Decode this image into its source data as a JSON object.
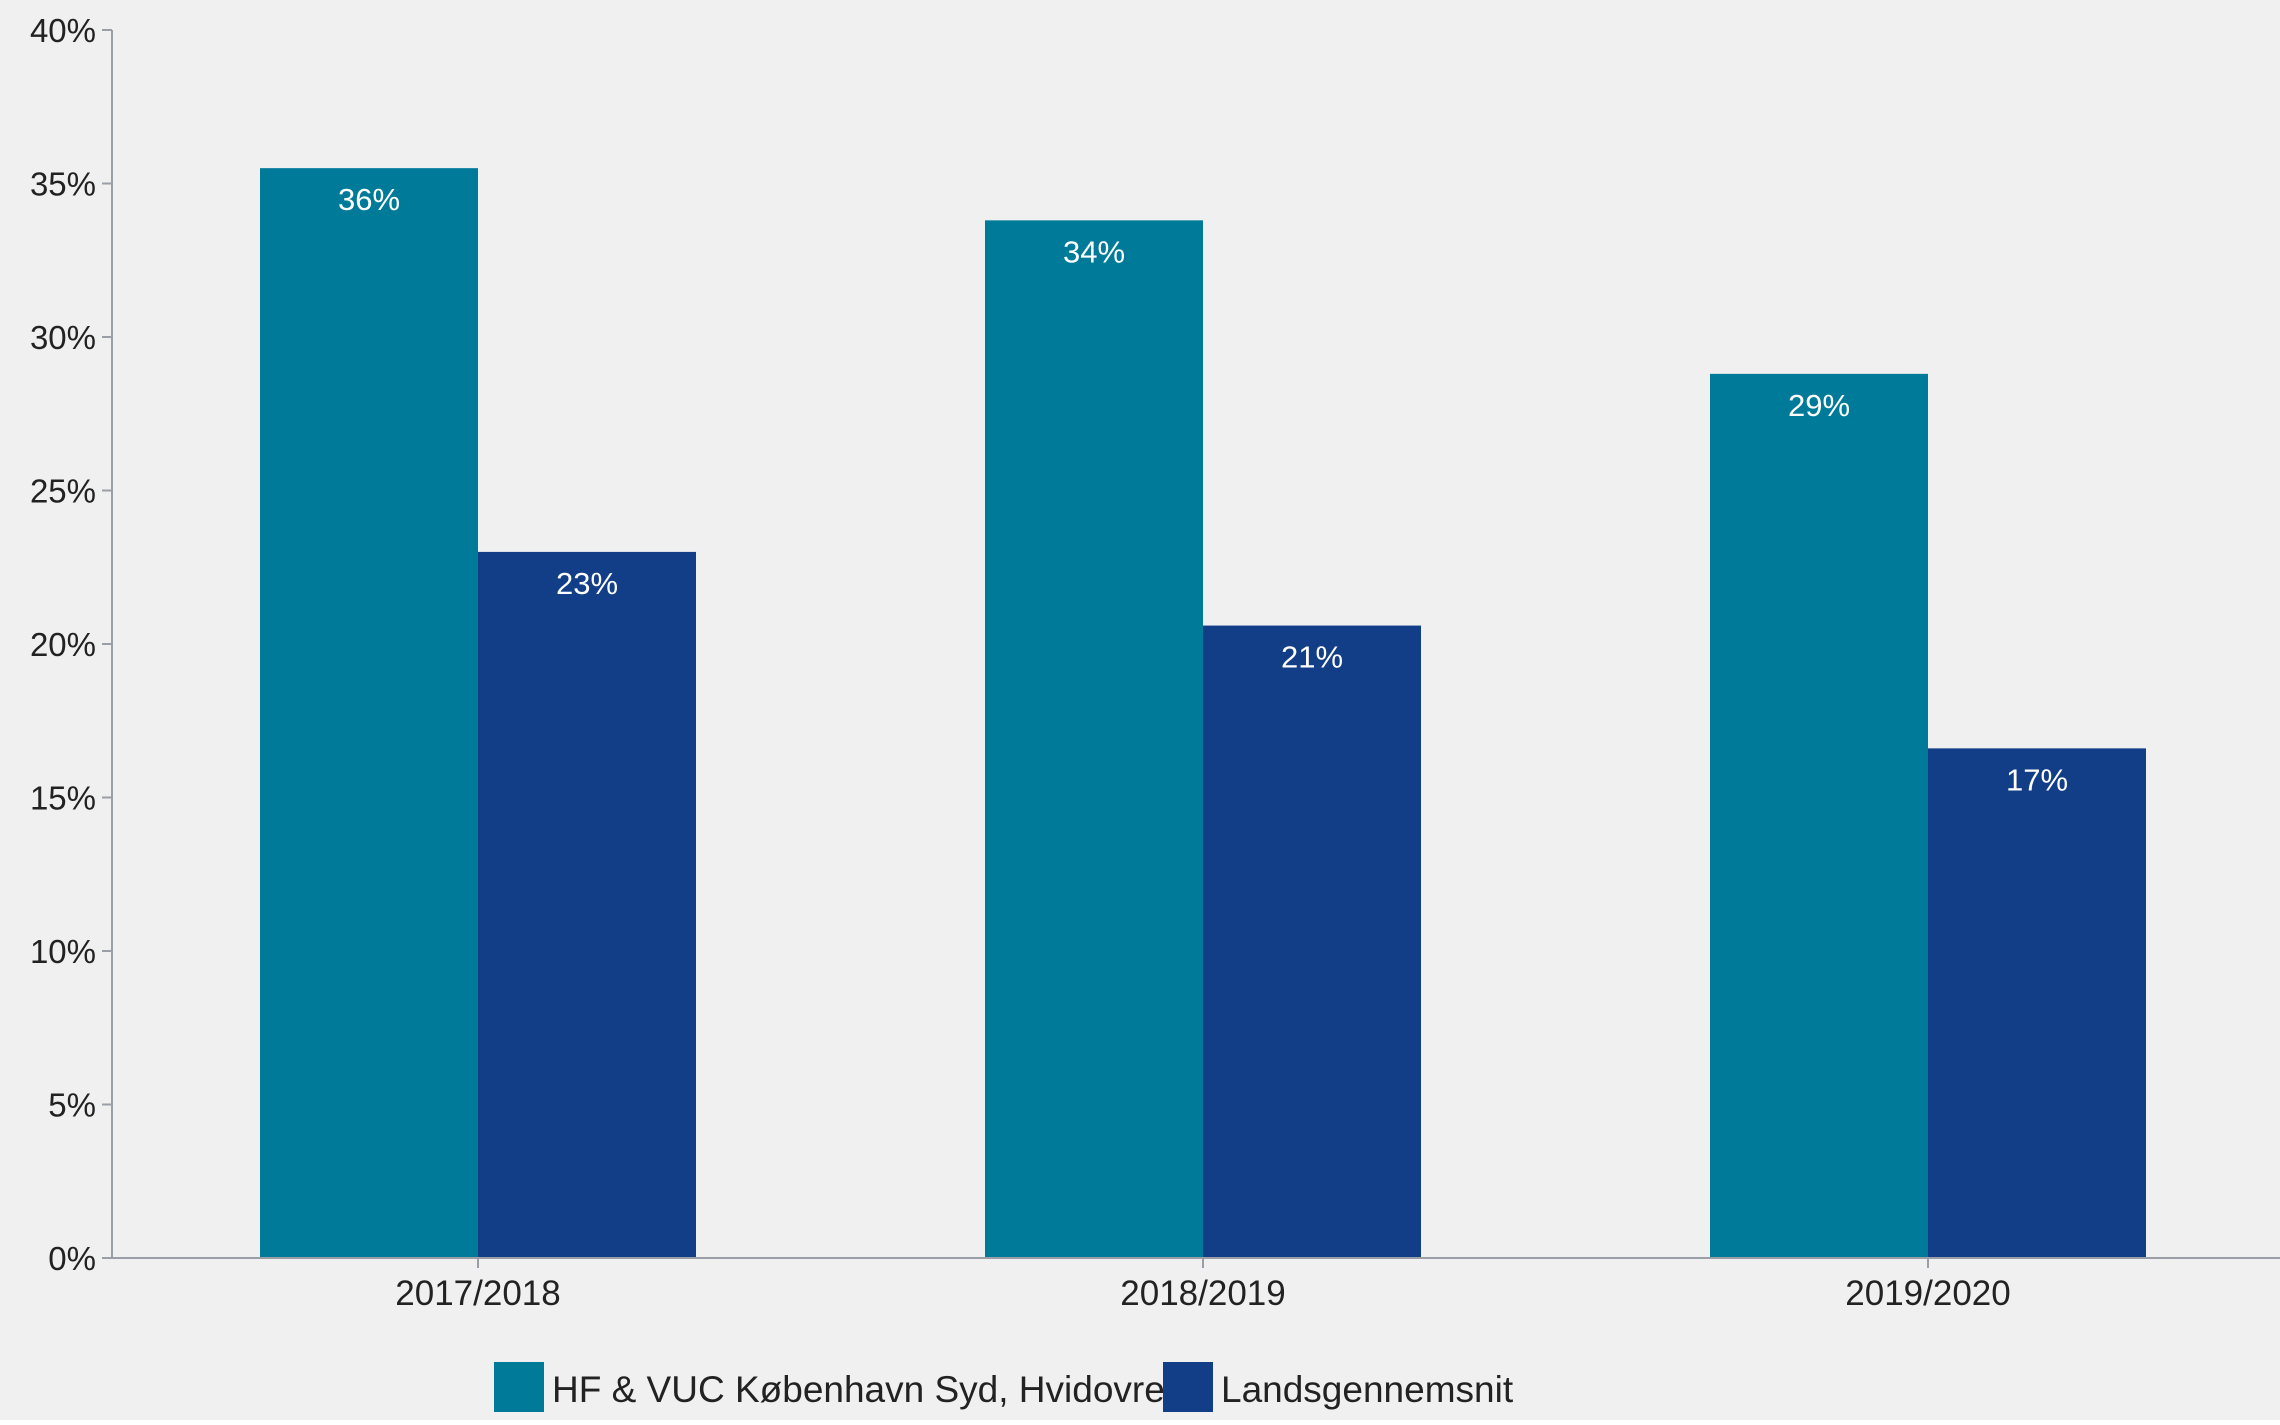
{
  "chart_data": {
    "type": "bar",
    "categories": [
      "2017/2018",
      "2018/2019",
      "2019/2020"
    ],
    "series": [
      {
        "name": "HF & VUC København Syd, Hvidovre",
        "values": [
          35.5,
          33.8,
          28.8
        ],
        "labels": [
          "36%",
          "34%",
          "29%"
        ],
        "color": "#007A99"
      },
      {
        "name": "Landsgennemsnit",
        "values": [
          23.0,
          20.6,
          16.6
        ],
        "labels": [
          "23%",
          "21%",
          "17%"
        ],
        "color": "#123D87"
      }
    ],
    "y_ticks": [
      {
        "value": 0,
        "label": "0%"
      },
      {
        "value": 5,
        "label": "5%"
      },
      {
        "value": 10,
        "label": "10%"
      },
      {
        "value": 15,
        "label": "15%"
      },
      {
        "value": 20,
        "label": "20%"
      },
      {
        "value": 25,
        "label": "25%"
      },
      {
        "value": 30,
        "label": "30%"
      },
      {
        "value": 35,
        "label": "35%"
      },
      {
        "value": 40,
        "label": "40%"
      }
    ],
    "ylim": [
      0,
      40
    ],
    "title": "",
    "xlabel": "",
    "ylabel": "",
    "grid": false,
    "legend_position": "bottom-left",
    "background_color": "#F0F0F0",
    "axis_color": "#9A9EA6",
    "data_label_color": "#FFFFFF",
    "text_color": "#222222"
  }
}
